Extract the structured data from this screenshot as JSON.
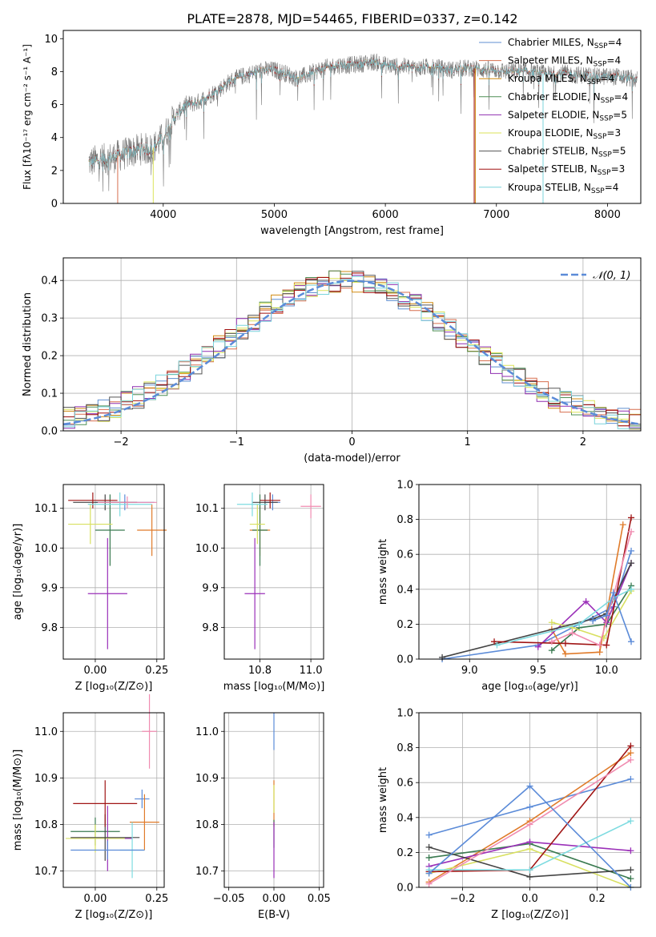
{
  "figure_title": "PLATE=2878, MJD=54465, FIBERID=0337, z=0.142",
  "colors": {
    "chabrier_miles": "#5f8fd0",
    "salpeter_miles": "#d76f4f",
    "kroupa_miles": "#d08a10",
    "chabrier_elodie": "#4f8f55",
    "salpeter_elodie": "#8f2fb0",
    "kroupa_elodie": "#dbe35a",
    "chabrier_stelib": "#555555",
    "salpeter_stelib": "#a01010",
    "kroupa_stelib": "#79d4dc",
    "normal_curve": "#5b8bd8",
    "cross_colors": [
      "#5b8bd8",
      "#e07b2a",
      "#3a7a50",
      "#9a2fb8",
      "#d8e060",
      "#444444",
      "#a01515",
      "#7ddbe0",
      "#f08cb0"
    ]
  },
  "chart_data": [
    {
      "id": "spectrum",
      "type": "line",
      "title": "PLATE=2878, MJD=54465, FIBERID=0337, z=0.142",
      "xlabel": "wavelength [Angstrom, rest frame]",
      "ylabel": "Flux [fλ10⁻¹⁷ erg cm⁻² s⁻¹ A⁻¹]",
      "xlim": [
        3100,
        8300
      ],
      "ylim": [
        0,
        10.5
      ],
      "xticks": [
        4000,
        5000,
        6000,
        7000,
        8000
      ],
      "yticks": [
        0,
        2,
        4,
        6,
        8,
        10
      ],
      "grid": false,
      "legend_position": "top-right",
      "legend": [
        {
          "label": "Chabrier MILES, N",
          "sub": "SSP",
          "suffix": "=4"
        },
        {
          "label": "Salpeter MILES, N",
          "sub": "SSP",
          "suffix": "=4"
        },
        {
          "label": "Kroupa MILES, N",
          "sub": "SSP",
          "suffix": "=4"
        },
        {
          "label": "Chabrier ELODIE, N",
          "sub": "SSP",
          "suffix": "=4"
        },
        {
          "label": "Salpeter ELODIE, N",
          "sub": "SSP",
          "suffix": "=5"
        },
        {
          "label": "Kroupa ELODIE, N",
          "sub": "SSP",
          "suffix": "=3"
        },
        {
          "label": "Chabrier STELIB, N",
          "sub": "SSP",
          "suffix": "=5"
        },
        {
          "label": "Salpeter STELIB, N",
          "sub": "SSP",
          "suffix": "=3"
        },
        {
          "label": "Kroupa STELIB, N",
          "sub": "SSP",
          "suffix": "=4"
        }
      ],
      "envelope": [
        [
          3330,
          2.5
        ],
        [
          3400,
          2.6
        ],
        [
          3500,
          2.7
        ],
        [
          3600,
          2.9
        ],
        [
          3700,
          3.1
        ],
        [
          3800,
          3.3
        ],
        [
          3900,
          3.3
        ],
        [
          4000,
          4.0
        ],
        [
          4100,
          5.2
        ],
        [
          4200,
          6.0
        ],
        [
          4300,
          6.1
        ],
        [
          4400,
          6.5
        ],
        [
          4500,
          6.9
        ],
        [
          4600,
          7.4
        ],
        [
          4700,
          7.7
        ],
        [
          4800,
          7.9
        ],
        [
          4900,
          8.1
        ],
        [
          5000,
          8.1
        ],
        [
          5100,
          7.9
        ],
        [
          5200,
          7.6
        ],
        [
          5300,
          7.8
        ],
        [
          5400,
          8.1
        ],
        [
          5500,
          8.3
        ],
        [
          5600,
          8.4
        ],
        [
          5700,
          8.4
        ],
        [
          5800,
          8.5
        ],
        [
          5900,
          8.6
        ],
        [
          6000,
          8.4
        ],
        [
          6100,
          8.3
        ],
        [
          6200,
          8.3
        ],
        [
          6300,
          8.2
        ],
        [
          6400,
          8.3
        ],
        [
          6500,
          8.2
        ],
        [
          6600,
          8.1
        ],
        [
          6700,
          8.2
        ],
        [
          6800,
          8.2
        ],
        [
          6900,
          8.1
        ],
        [
          7000,
          8.1
        ],
        [
          7100,
          8.0
        ],
        [
          7200,
          8.0
        ],
        [
          7300,
          8.0
        ],
        [
          7400,
          7.9
        ],
        [
          7500,
          7.8
        ],
        [
          7600,
          7.9
        ],
        [
          7700,
          7.8
        ],
        [
          7800,
          7.8
        ],
        [
          7900,
          7.7
        ],
        [
          8000,
          7.7
        ],
        [
          8100,
          7.7
        ],
        [
          8200,
          7.6
        ],
        [
          8270,
          7.5
        ]
      ]
    },
    {
      "id": "residuals",
      "type": "histogram",
      "xlabel": "(data-model)/error",
      "ylabel": "Normed distribution",
      "xlim": [
        -2.5,
        2.5
      ],
      "ylim": [
        0,
        0.46
      ],
      "xticks": [
        -2,
        -1,
        0,
        1,
        2
      ],
      "yticks": [
        0.0,
        0.1,
        0.2,
        0.3,
        0.4
      ],
      "grid": true,
      "legend_position": "top-right",
      "legend": [
        "N(0,1)"
      ],
      "bin_edges_start": -2.5,
      "bin_width": 0.1
    },
    {
      "id": "age_vs_Z",
      "type": "scatter",
      "xlabel": "Z [log₁₀(Z/Z⊙)]",
      "ylabel": "age  [log₁₀(age/yr)]",
      "xlim": [
        -0.13,
        0.28
      ],
      "ylim": [
        9.72,
        10.16
      ],
      "xticks": [
        0.0,
        0.25
      ],
      "yticks": [
        9.8,
        9.9,
        10.0,
        10.1
      ],
      "grid": true,
      "points": [
        {
          "x": 0.12,
          "y": 10.115,
          "xerr": 0.12,
          "yerr": 0.02
        },
        {
          "x": 0.23,
          "y": 10.045,
          "xerr": 0.06,
          "yerr": 0.065
        },
        {
          "x": 0.06,
          "y": 10.045,
          "xerr": 0.06,
          "yerr": 0.09
        },
        {
          "x": 0.05,
          "y": 9.885,
          "xerr": 0.08,
          "yerr": 0.14
        },
        {
          "x": -0.02,
          "y": 10.06,
          "xerr": 0.09,
          "yerr": 0.05
        },
        {
          "x": 0.04,
          "y": 10.115,
          "xerr": 0.13,
          "yerr": 0.02
        },
        {
          "x": -0.01,
          "y": 10.12,
          "xerr": 0.1,
          "yerr": 0.02
        },
        {
          "x": 0.1,
          "y": 10.11,
          "xerr": 0.13,
          "yerr": 0.03
        },
        {
          "x": 0.13,
          "y": 10.115,
          "xerr": 0.12,
          "yerr": 0.015
        }
      ]
    },
    {
      "id": "age_vs_mass",
      "type": "scatter",
      "xlabel": "mass [log₁₀(M/M⊙)]",
      "ylabel": "",
      "xlim": [
        10.66,
        11.05
      ],
      "ylim": [
        9.72,
        10.16
      ],
      "xticks": [
        10.8,
        11.0
      ],
      "yticks": [
        9.8,
        9.9,
        10.0,
        10.1
      ],
      "grid": true,
      "points": [
        {
          "x": 10.85,
          "y": 10.115,
          "xerr": 0.03,
          "yerr": 0.02
        },
        {
          "x": 10.8,
          "y": 10.045,
          "xerr": 0.04,
          "yerr": 0.065
        },
        {
          "x": 10.8,
          "y": 10.045,
          "xerr": 0.03,
          "yerr": 0.09
        },
        {
          "x": 10.78,
          "y": 9.885,
          "xerr": 0.04,
          "yerr": 0.14
        },
        {
          "x": 10.79,
          "y": 10.06,
          "xerr": 0.03,
          "yerr": 0.05
        },
        {
          "x": 10.82,
          "y": 10.115,
          "xerr": 0.05,
          "yerr": 0.02
        },
        {
          "x": 10.84,
          "y": 10.12,
          "xerr": 0.04,
          "yerr": 0.02
        },
        {
          "x": 10.77,
          "y": 10.11,
          "xerr": 0.06,
          "yerr": 0.03
        },
        {
          "x": 11.0,
          "y": 10.105,
          "xerr": 0.04,
          "yerr": 0.03
        }
      ]
    },
    {
      "id": "mass_weight_vs_age",
      "type": "line",
      "xlabel": "age  [log₁₀(age/yr)]",
      "ylabel": "mass weight",
      "xlim": [
        8.63,
        10.25
      ],
      "ylim": [
        0.0,
        1.0
      ],
      "xticks": [
        9.0,
        9.5,
        10.0
      ],
      "yticks": [
        0.0,
        0.2,
        0.4,
        0.6,
        0.8,
        1.0
      ],
      "grid": true,
      "series": [
        {
          "x": [
            8.8,
            9.5,
            10.05,
            10.18
          ],
          "y": [
            0.0,
            0.08,
            0.3,
            0.62
          ]
        },
        {
          "x": [
            9.6,
            9.7,
            9.95,
            10.12
          ],
          "y": [
            0.17,
            0.03,
            0.04,
            0.77
          ]
        },
        {
          "x": [
            9.6,
            9.8,
            10.0,
            10.18
          ],
          "y": [
            0.05,
            0.18,
            0.2,
            0.42
          ]
        },
        {
          "x": [
            9.5,
            9.85,
            10.0,
            10.18
          ],
          "y": [
            0.07,
            0.33,
            0.21,
            0.55
          ]
        },
        {
          "x": [
            9.6,
            9.75,
            9.98,
            10.18
          ],
          "y": [
            0.21,
            0.18,
            0.12,
            0.39
          ]
        },
        {
          "x": [
            8.8,
            9.9,
            10.0,
            10.18
          ],
          "y": [
            0.01,
            0.23,
            0.26,
            0.55
          ]
        },
        {
          "x": [
            9.18,
            9.7,
            10.0,
            10.18
          ],
          "y": [
            0.1,
            0.09,
            0.08,
            0.81
          ]
        },
        {
          "x": [
            9.2,
            9.8,
            10.05,
            10.18
          ],
          "y": [
            0.08,
            0.2,
            0.35,
            0.4
          ]
        },
        {
          "x": [
            9.6,
            9.75,
            9.95,
            10.18
          ],
          "y": [
            0.1,
            0.15,
            0.08,
            0.73
          ]
        },
        {
          "x": [
            9.9,
            10.0,
            10.05,
            10.18
          ],
          "y": [
            0.22,
            0.25,
            0.38,
            0.1
          ]
        }
      ]
    },
    {
      "id": "mass_vs_Z",
      "type": "scatter",
      "xlabel": "Z [log₁₀(Z/Z⊙)]",
      "ylabel": "mass [log₁₀(M/M⊙)]",
      "xlim": [
        -0.13,
        0.28
      ],
      "ylim": [
        10.665,
        11.04
      ],
      "xticks": [
        0.0,
        0.25
      ],
      "yticks": [
        10.7,
        10.8,
        10.9,
        11.0
      ],
      "grid": true,
      "points": [
        {
          "x": 0.19,
          "y": 10.855,
          "xerr": 0.03,
          "yerr": 0.02
        },
        {
          "x": 0.2,
          "y": 10.805,
          "xerr": 0.06,
          "yerr": 0.06
        },
        {
          "x": 0.0,
          "y": 10.785,
          "xerr": 0.1,
          "yerr": 0.03
        },
        {
          "x": 0.05,
          "y": 10.77,
          "xerr": 0.1,
          "yerr": 0.07
        },
        {
          "x": 0.0,
          "y": 10.77,
          "xerr": 0.12,
          "yerr": 0.03
        },
        {
          "x": 0.04,
          "y": 10.772,
          "xerr": 0.14,
          "yerr": 0.05
        },
        {
          "x": 0.04,
          "y": 10.845,
          "xerr": 0.13,
          "yerr": 0.05
        },
        {
          "x": 0.15,
          "y": 10.745,
          "xerr": 0.05,
          "yerr": 0.06
        },
        {
          "x": 0.22,
          "y": 11.0,
          "xerr": 0.03,
          "yerr": 0.08
        },
        {
          "x": 0.05,
          "y": 10.745,
          "xerr": 0.15,
          "yerr": 0.02
        }
      ]
    },
    {
      "id": "mass_vs_ebv",
      "type": "scatter",
      "xlabel": "E(B-V)",
      "ylabel": "",
      "xlim": [
        -0.055,
        0.055
      ],
      "ylim": [
        10.665,
        11.04
      ],
      "xticks": [
        -0.05,
        0.0,
        0.05
      ],
      "yticks": [
        10.7,
        10.8,
        10.9,
        11.0
      ],
      "grid": true,
      "points": [
        {
          "x": 0.0,
          "y": 11.0,
          "xerr": 0.0,
          "yerr": 0.04
        },
        {
          "x": 0.0,
          "y": 10.845,
          "xerr": 0.0,
          "yerr": 0.05
        },
        {
          "x": 0.0,
          "y": 10.78,
          "xerr": 0.0,
          "yerr": 0.03
        },
        {
          "x": 0.0,
          "y": 10.745,
          "xerr": 0.0,
          "yerr": 0.06
        },
        {
          "x": 0.0,
          "y": 10.855,
          "xerr": 0.0,
          "yerr": 0.03
        }
      ]
    },
    {
      "id": "mass_weight_vs_Z",
      "type": "line",
      "xlabel": "Z [log₁₀(Z/Z⊙)]",
      "ylabel": "mass weight",
      "xlim": [
        -0.33,
        0.33
      ],
      "ylim": [
        0.0,
        1.0
      ],
      "xticks": [
        -0.2,
        0.0,
        0.2
      ],
      "yticks": [
        0.0,
        0.2,
        0.4,
        0.6,
        0.8,
        1.0
      ],
      "grid": true,
      "series": [
        {
          "x": [
            -0.3,
            0.0,
            0.3
          ],
          "y": [
            0.3,
            0.46,
            0.62
          ]
        },
        {
          "x": [
            -0.3,
            0.0,
            0.3
          ],
          "y": [
            0.03,
            0.38,
            0.77
          ]
        },
        {
          "x": [
            -0.3,
            0.0,
            0.3
          ],
          "y": [
            0.17,
            0.25,
            0.05
          ]
        },
        {
          "x": [
            -0.3,
            0.0,
            0.3
          ],
          "y": [
            0.12,
            0.26,
            0.21
          ]
        },
        {
          "x": [
            -0.3,
            0.0,
            0.3
          ],
          "y": [
            0.08,
            0.22,
            0.0
          ]
        },
        {
          "x": [
            -0.3,
            0.0,
            0.3
          ],
          "y": [
            0.23,
            0.06,
            0.1
          ]
        },
        {
          "x": [
            -0.3,
            0.0,
            0.3
          ],
          "y": [
            0.09,
            0.1,
            0.81
          ]
        },
        {
          "x": [
            -0.3,
            0.0,
            0.3
          ],
          "y": [
            0.1,
            0.1,
            0.38
          ]
        },
        {
          "x": [
            -0.3,
            0.0,
            0.3
          ],
          "y": [
            0.02,
            0.36,
            0.73
          ]
        },
        {
          "x": [
            -0.3,
            0.0,
            0.3
          ],
          "y": [
            0.08,
            0.58,
            0.0
          ]
        }
      ]
    }
  ]
}
